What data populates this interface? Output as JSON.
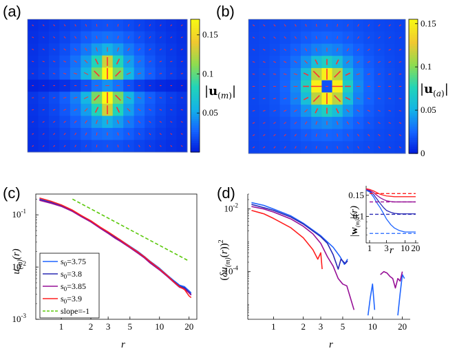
{
  "panel_labels": {
    "a": "(a)",
    "b": "(b)",
    "c": "(c)",
    "d": "(d)"
  },
  "colormap": [
    "#0018d8",
    "#1464ff",
    "#14b4e6",
    "#22d4b8",
    "#8edc50",
    "#f0c830",
    "#f8f814"
  ],
  "arrow_color": "#ff3030",
  "chart_data": [
    {
      "type": "heatmap",
      "panel": "(a)",
      "colorbar_label": "|u(m)|",
      "clim": [
        0,
        0.17
      ],
      "colorbar_ticks": [
        "0.05",
        "0.1",
        "0.15"
      ],
      "colorbar_tick_values": [
        0.05,
        0.1,
        0.15
      ],
      "grid": [
        11,
        15
      ],
      "field": "dipole",
      "peak": 0.17
    },
    {
      "type": "heatmap",
      "panel": "(b)",
      "colorbar_label": "|u(a)|",
      "clim": [
        0,
        0.155
      ],
      "colorbar_ticks": [
        "0",
        "0.05",
        "0.1",
        "0.15"
      ],
      "colorbar_tick_values": [
        0,
        0.05,
        0.1,
        0.15
      ],
      "grid": [
        11,
        15
      ],
      "field": "ring",
      "peak": 0.15
    },
    {
      "type": "line",
      "panel": "(c)",
      "xlabel": "r",
      "ylabel": "u(m)(r)",
      "xscale": "log",
      "yscale": "log",
      "xlim": [
        0.55,
        24
      ],
      "ylim": [
        0.001,
        0.25
      ],
      "xticks": [
        1,
        2,
        3,
        5,
        10,
        20
      ],
      "yticks": [
        0.001,
        0.01,
        0.1
      ],
      "ytick_labels": [
        "10-3",
        "10-2",
        "10-1"
      ],
      "legend_position": "lower-left",
      "series": [
        {
          "name": "s0=3.75",
          "color": "#1e64ff",
          "x": [
            0.6,
            0.8,
            1.0,
            1.3,
            1.6,
            2.0,
            2.5,
            3.0,
            3.5,
            4.0,
            5.0,
            6.0,
            7.0,
            8.0,
            10.0,
            12.0,
            14.0,
            16.0,
            18.0,
            20.0,
            21.0
          ],
          "y": [
            0.2,
            0.175,
            0.15,
            0.12,
            0.095,
            0.075,
            0.057,
            0.046,
            0.038,
            0.033,
            0.025,
            0.02,
            0.016,
            0.013,
            0.0095,
            0.007,
            0.0055,
            0.0045,
            0.0042,
            0.0035,
            0.0032
          ]
        },
        {
          "name": "s0=3.8",
          "color": "#2828b4",
          "x": [
            0.6,
            0.8,
            1.0,
            1.3,
            1.6,
            2.0,
            2.5,
            3.0,
            3.5,
            4.0,
            5.0,
            6.0,
            7.0,
            8.0,
            10.0,
            12.0,
            14.0,
            16.0,
            18.0,
            20.0,
            21.0
          ],
          "y": [
            0.195,
            0.17,
            0.148,
            0.118,
            0.093,
            0.074,
            0.056,
            0.045,
            0.037,
            0.032,
            0.024,
            0.019,
            0.0155,
            0.0125,
            0.009,
            0.0068,
            0.0053,
            0.0043,
            0.004,
            0.0033,
            0.003
          ]
        },
        {
          "name": "s0=3.85",
          "color": "#960f96",
          "x": [
            0.6,
            0.8,
            1.0,
            1.3,
            1.6,
            2.0,
            2.5,
            3.0,
            3.5,
            4.0,
            5.0,
            6.0,
            7.0,
            8.0,
            10.0,
            12.0,
            14.0,
            16.0,
            18.0,
            20.0,
            21.0
          ],
          "y": [
            0.19,
            0.165,
            0.145,
            0.116,
            0.092,
            0.073,
            0.055,
            0.044,
            0.036,
            0.031,
            0.0235,
            0.0185,
            0.015,
            0.012,
            0.0088,
            0.0066,
            0.0051,
            0.0041,
            0.0038,
            0.0032,
            0.0029
          ]
        },
        {
          "name": "s0=3.9",
          "color": "#ff1e1e",
          "x": [
            0.6,
            0.8,
            1.0,
            1.3,
            1.6,
            2.0,
            2.5,
            3.0,
            3.5,
            4.0,
            5.0,
            6.0,
            7.0,
            8.0,
            10.0,
            12.0,
            14.0,
            16.0,
            18.0,
            20.0,
            21.0
          ],
          "y": [
            0.21,
            0.18,
            0.155,
            0.123,
            0.097,
            0.077,
            0.058,
            0.047,
            0.039,
            0.033,
            0.0245,
            0.0195,
            0.0158,
            0.0128,
            0.0092,
            0.0069,
            0.0052,
            0.0042,
            0.0037,
            0.0028,
            0.0026
          ]
        },
        {
          "name": "slope=-1",
          "color": "#5ac80a",
          "dashed": true,
          "x": [
            1.3,
            20.0
          ],
          "y": [
            0.2,
            0.013
          ]
        }
      ]
    },
    {
      "type": "line",
      "panel": "(d)",
      "xlabel": "r",
      "ylabel": "(δu(m)(r))²",
      "xscale": "log",
      "yscale": "log",
      "xlim": [
        0.55,
        24
      ],
      "ylim": [
        3e-06,
        0.03
      ],
      "xticks": [
        1,
        2,
        3,
        5,
        10,
        20
      ],
      "yticks": [
        0.0001,
        0.01
      ],
      "ytick_labels": [
        "10-4",
        "10-2"
      ],
      "series": [
        {
          "color": "#1e64ff",
          "segments": [
            [
              [
                0.6,
                0.016
              ],
              [
                0.8,
                0.013
              ],
              [
                1.0,
                0.01
              ],
              [
                1.5,
                0.006
              ],
              [
                2.0,
                0.0035
              ],
              [
                3.0,
                0.0014
              ],
              [
                4.0,
                0.0006
              ],
              [
                4.7,
                0.0003
              ],
              [
                5.2,
                0.00017
              ],
              [
                5.6,
                0.00025
              ]
            ],
            [
              [
                9.0,
                4e-06
              ],
              [
                9.5,
                1.5e-05
              ],
              [
                10.0,
                4e-05
              ],
              [
                10.5,
                6e-06
              ]
            ],
            [
              [
                18.0,
                4e-06
              ],
              [
                19.0,
                2e-05
              ],
              [
                20.0,
                8e-05
              ],
              [
                21.0,
                6e-05
              ]
            ]
          ]
        },
        {
          "color": "#2828b4",
          "segments": [
            [
              [
                0.6,
                0.014
              ],
              [
                0.8,
                0.011
              ],
              [
                1.0,
                0.009
              ],
              [
                1.5,
                0.0055
              ],
              [
                2.0,
                0.0033
              ],
              [
                3.0,
                0.0013
              ],
              [
                3.5,
                0.0008
              ],
              [
                4.0,
                0.00035
              ],
              [
                4.5,
                0.00012
              ],
              [
                4.8,
                0.00025
              ],
              [
                5.3,
                0.00018
              ],
              [
                5.6,
                0.00022
              ]
            ]
          ]
        },
        {
          "color": "#960f96",
          "segments": [
            [
              [
                0.6,
                0.012
              ],
              [
                0.8,
                0.01
              ],
              [
                1.0,
                0.008
              ],
              [
                1.5,
                0.0048
              ],
              [
                2.0,
                0.0028
              ],
              [
                2.5,
                0.0016
              ],
              [
                3.0,
                0.0008
              ],
              [
                3.5,
                0.0003
              ],
              [
                4.0,
                0.00015
              ],
              [
                4.5,
                6e-05
              ],
              [
                5.0,
                4e-05
              ],
              [
                5.5,
                3.5e-05
              ],
              [
                6.5,
                6e-06
              ]
            ],
            [
              [
                12.0,
                8e-05
              ],
              [
                13.0,
                0.0001
              ],
              [
                14.0,
                9e-05
              ],
              [
                15.0,
                7e-05
              ],
              [
                16.0,
                6e-05
              ],
              [
                17.0,
                3e-05
              ],
              [
                18.0,
                6e-05
              ],
              [
                19.0,
                5e-05
              ],
              [
                20.0,
                0.0001
              ]
            ]
          ]
        },
        {
          "color": "#ff1e1e",
          "segments": [
            [
              [
                0.6,
                0.009
              ],
              [
                0.8,
                0.007
              ],
              [
                1.0,
                0.005
              ],
              [
                1.5,
                0.0025
              ],
              [
                2.0,
                0.0012
              ],
              [
                2.5,
                0.0005
              ],
              [
                2.8,
                0.00025
              ],
              [
                3.0,
                0.0004
              ],
              [
                3.1,
                0.00012
              ]
            ]
          ]
        }
      ],
      "inset": {
        "xlabel": "r",
        "ylabel": "|w(m)|(r)",
        "xscale": "log",
        "yscale": "log",
        "xlim": [
          0.8,
          24
        ],
        "ylim": [
          0.06,
          0.18
        ],
        "xticks": [
          1,
          3,
          10,
          20
        ],
        "yticks": [
          0.05,
          0.1,
          0.15
        ],
        "ytick_labels": [
          "0.05",
          "0.1",
          "0.15"
        ],
        "series": [
          {
            "color": "#1e64ff",
            "x": [
              0.8,
              1.0,
              1.3,
              1.6,
              2.0,
              2.5,
              3.0,
              4.0,
              5.0,
              7.0,
              10.0,
              15.0,
              20.0
            ],
            "y": [
              0.165,
              0.16,
              0.145,
              0.13,
              0.118,
              0.105,
              0.095,
              0.085,
              0.08,
              0.076,
              0.074,
              0.074,
              0.074
            ]
          },
          {
            "color": "#1e64ff",
            "dashed": true,
            "x": [
              1.0,
              20.0
            ],
            "y": [
              0.072,
              0.072
            ]
          },
          {
            "color": "#2828b4",
            "x": [
              0.8,
              1.0,
              1.3,
              1.6,
              2.0,
              2.5,
              3.0,
              4.0,
              5.0,
              7.0,
              10.0,
              15.0,
              20.0
            ],
            "y": [
              0.168,
              0.163,
              0.152,
              0.14,
              0.128,
              0.118,
              0.112,
              0.108,
              0.106,
              0.105,
              0.105,
              0.105,
              0.105
            ]
          },
          {
            "color": "#2828b4",
            "dashed": true,
            "x": [
              1.0,
              20.0
            ],
            "y": [
              0.104,
              0.104
            ]
          },
          {
            "color": "#960f96",
            "x": [
              0.8,
              1.0,
              1.3,
              1.6,
              2.0,
              2.5,
              3.0,
              4.0,
              5.0,
              7.0,
              10.0,
              15.0,
              20.0
            ],
            "y": [
              0.168,
              0.165,
              0.158,
              0.15,
              0.143,
              0.138,
              0.135,
              0.133,
              0.132,
              0.132,
              0.132,
              0.132,
              0.132
            ]
          },
          {
            "color": "#960f96",
            "dashed": true,
            "x": [
              1.0,
              20.0
            ],
            "y": [
              0.132,
              0.132
            ]
          },
          {
            "color": "#ff1e1e",
            "x": [
              0.8,
              1.0,
              1.3,
              1.6,
              2.0,
              2.5,
              3.0,
              4.0,
              5.0,
              7.0,
              10.0,
              15.0,
              20.0
            ],
            "y": [
              0.17,
              0.168,
              0.163,
              0.158,
              0.153,
              0.15,
              0.148,
              0.147,
              0.146,
              0.146,
              0.146,
              0.146,
              0.146
            ]
          },
          {
            "color": "#ff1e1e",
            "dashed": true,
            "x": [
              1.0,
              20.0
            ],
            "y": [
              0.155,
              0.155
            ]
          }
        ]
      }
    }
  ]
}
